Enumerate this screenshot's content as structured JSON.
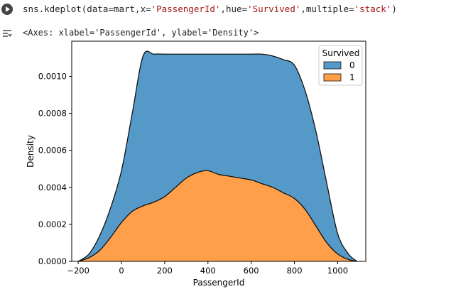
{
  "cell": {
    "code_parts": [
      {
        "text": "sns.kdeplot(data=mart,x=",
        "type": "code"
      },
      {
        "text": "'PassengerId'",
        "type": "str"
      },
      {
        "text": ",hue=",
        "type": "code"
      },
      {
        "text": "'Survived'",
        "type": "str"
      },
      {
        "text": ",multiple=",
        "type": "code"
      },
      {
        "text": "'stack'",
        "type": "str"
      },
      {
        "text": ")",
        "type": "code"
      }
    ],
    "output_text": "<Axes: xlabel='PassengerId', ylabel='Density'>"
  },
  "colors": {
    "series0": "#5599c8",
    "series1": "#ff9f4a",
    "string": "#a31515"
  },
  "chart_data": {
    "type": "area",
    "stacked": true,
    "xlabel": "PassengerId",
    "ylabel": "Density",
    "xlim": [
      -230,
      1130
    ],
    "ylim": [
      0,
      0.00119
    ],
    "xticks": [
      -200,
      0,
      200,
      400,
      600,
      800,
      1000
    ],
    "xtick_labels": [
      "−200",
      "0",
      "200",
      "400",
      "600",
      "800",
      "1000"
    ],
    "yticks": [
      0,
      0.0002,
      0.0004,
      0.0006,
      0.0008,
      0.001
    ],
    "ytick_labels": [
      "0.0000",
      "0.0002",
      "0.0004",
      "0.0006",
      "0.0008",
      "0.0010"
    ],
    "legend": {
      "title": "Survived",
      "placement": "top-right",
      "entries": [
        {
          "label": "0",
          "color": "#5599c8"
        },
        {
          "label": "1",
          "color": "#ff9f4a"
        }
      ]
    },
    "x": [
      -200,
      -150,
      -100,
      -50,
      0,
      50,
      100,
      150,
      200,
      250,
      300,
      350,
      400,
      450,
      500,
      550,
      600,
      650,
      700,
      750,
      800,
      850,
      900,
      950,
      1000,
      1050,
      1090
    ],
    "series": [
      {
        "name": "1",
        "values": [
          0.0,
          2e-05,
          6e-05,
          0.00013,
          0.00021,
          0.00027,
          0.0003,
          0.00032,
          0.00035,
          0.0004,
          0.00045,
          0.00048,
          0.00049,
          0.00047,
          0.00046,
          0.00045,
          0.00044,
          0.00042,
          0.0004,
          0.00037,
          0.00034,
          0.00028,
          0.00019,
          0.0001,
          4e-05,
          1e-05,
          0.0
        ]
      },
      {
        "name": "0",
        "values": [
          0.0,
          2e-05,
          8e-05,
          0.00016,
          0.00028,
          0.00053,
          0.00081,
          0.0008,
          0.00077,
          0.00072,
          0.00067,
          0.00064,
          0.00063,
          0.00065,
          0.00066,
          0.00067,
          0.00068,
          0.0007,
          0.00071,
          0.00072,
          0.00072,
          0.00064,
          0.00051,
          0.00032,
          0.00011,
          3e-05,
          0.0
        ]
      }
    ]
  }
}
